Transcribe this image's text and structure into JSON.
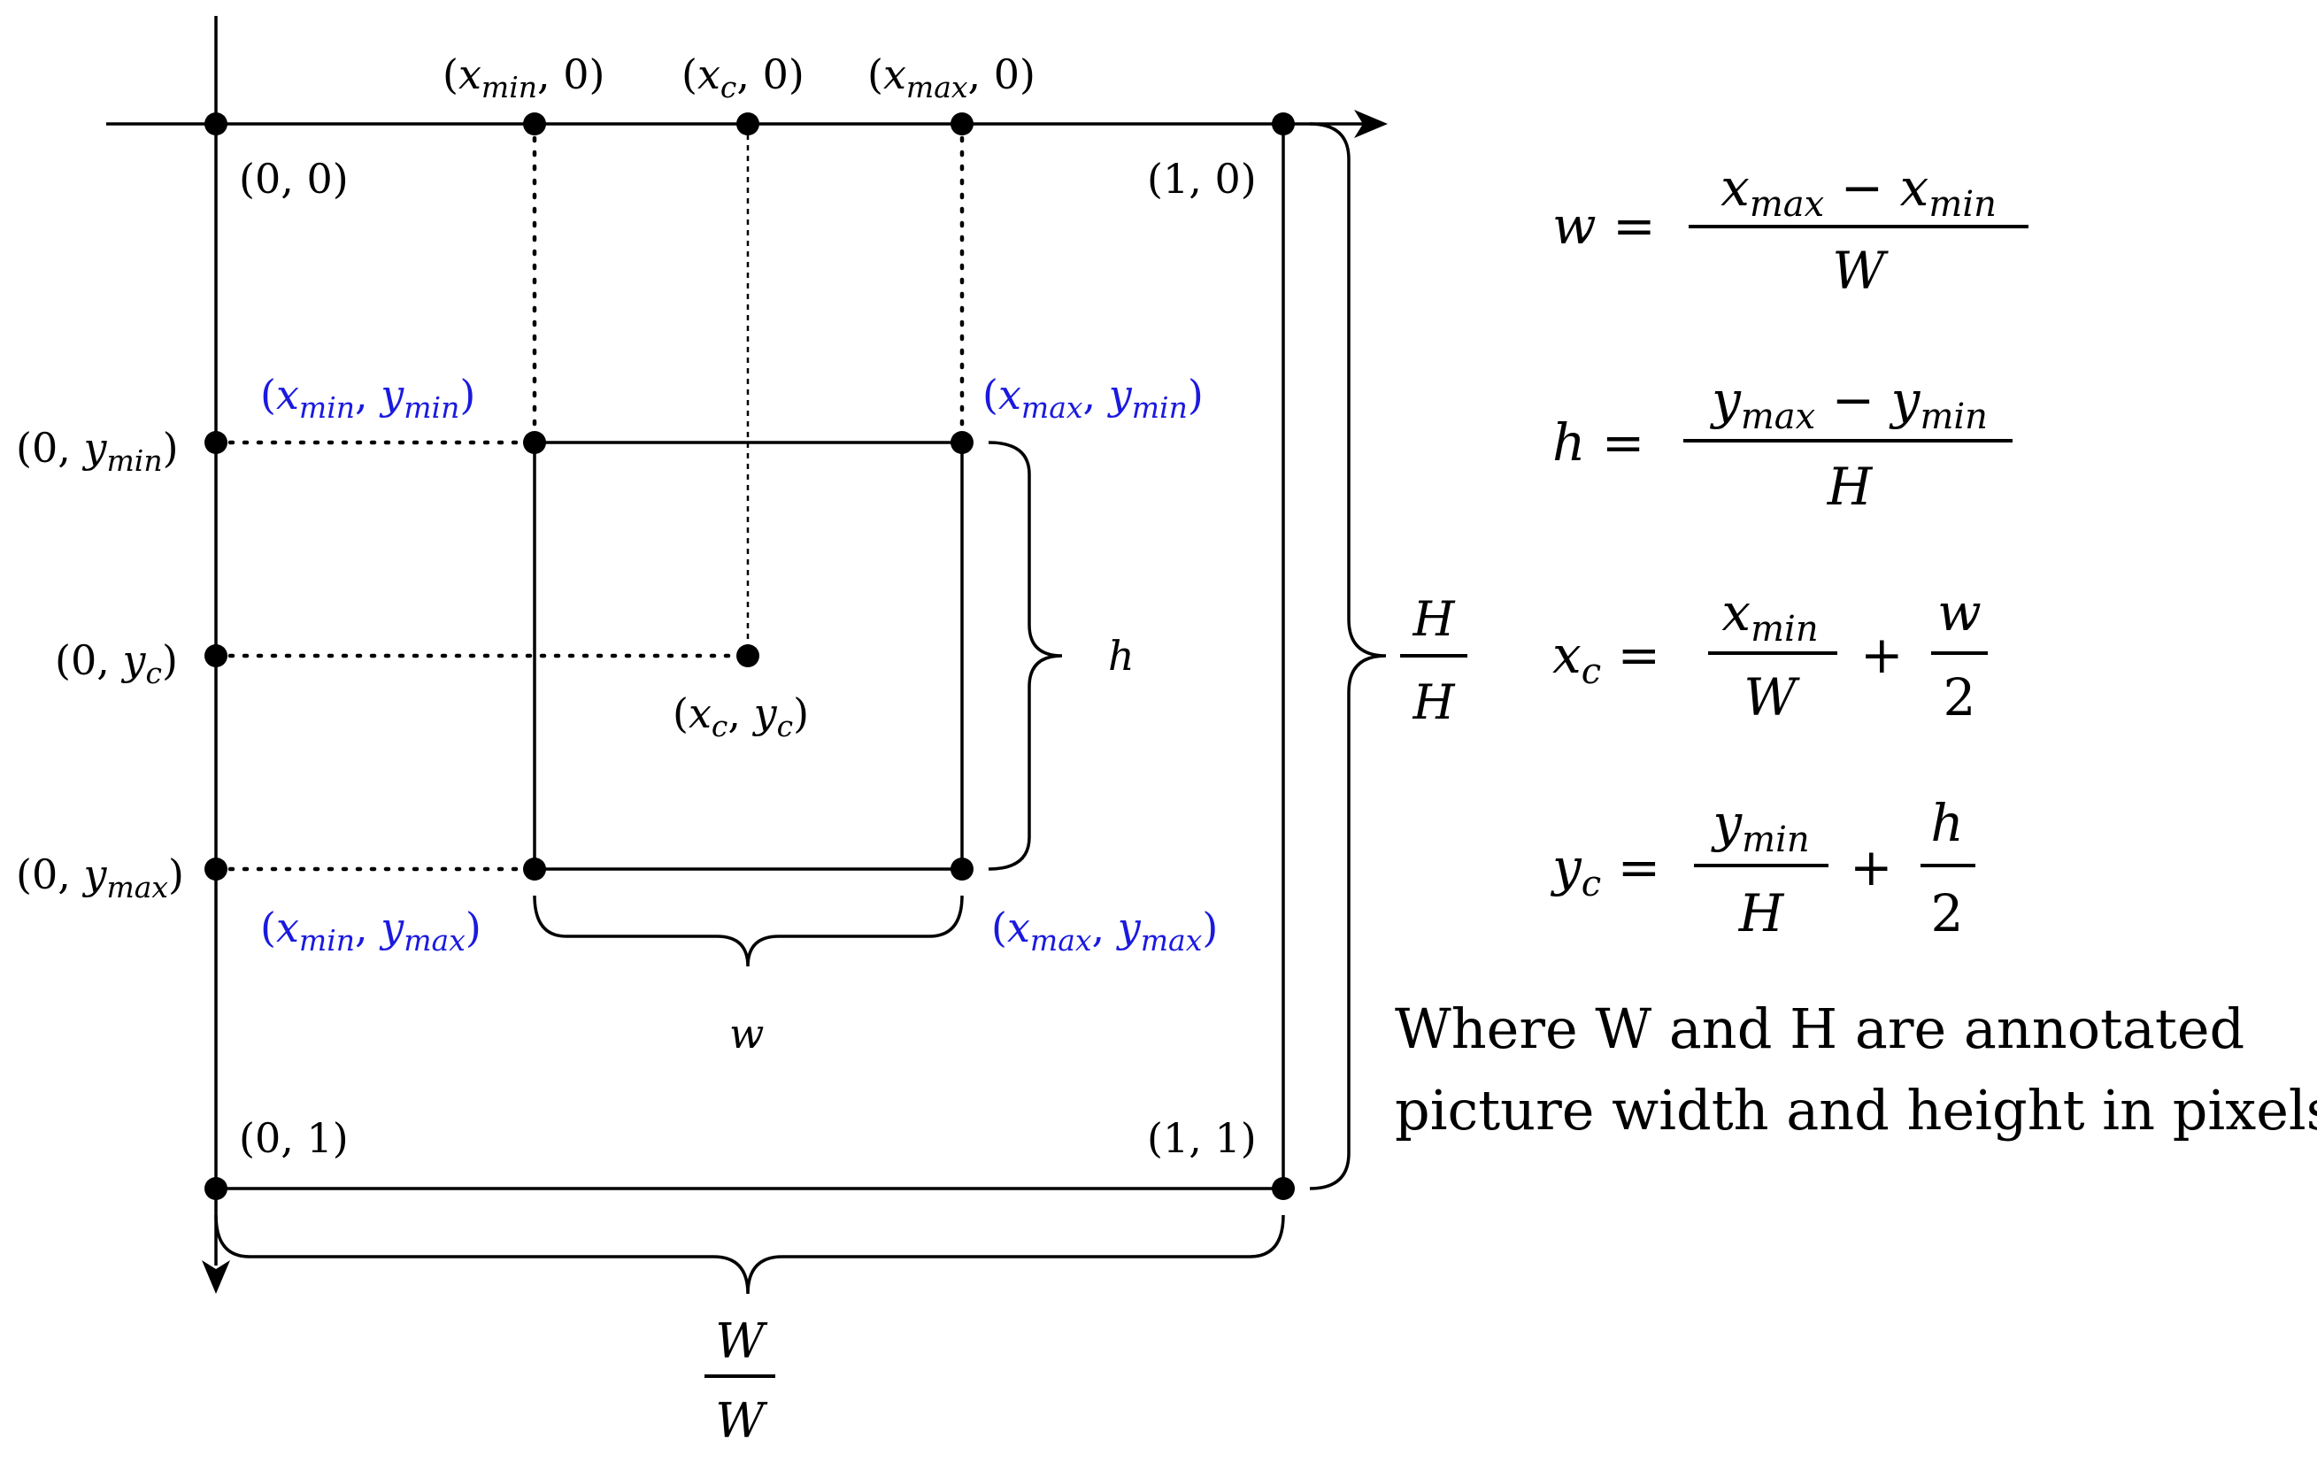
{
  "points": {
    "origin": "(0, 0)",
    "top_right": "(1, 0)",
    "bottom_left": "(0, 1)",
    "bottom_right": "(1, 1)",
    "xmin_axis": "(x_min, 0)",
    "xc_axis": "(x_c, 0)",
    "xmax_axis": "(x_max, 0)",
    "ymin_axis": "(0, y_min)",
    "yc_axis": "(0, y_c)",
    "ymax_axis": "(0, y_max)",
    "center": "(x_c, y_c)"
  },
  "box_corners": {
    "top_left": "(x_min, y_min)",
    "top_right": "(x_max, y_min)",
    "bottom_left": "(x_min, y_max)",
    "bottom_right": "(x_max, y_max)"
  },
  "braces": {
    "box_width": "w",
    "box_height": "h",
    "image_width": "W/W",
    "image_height": "H/H"
  },
  "formulas": [
    "w = (x_max − x_min) / W",
    "h = (y_max − y_min) / H",
    "x_c = x_min / W + w / 2",
    "y_c = y_min / H + h / 2"
  ],
  "note": {
    "line1": "Where W and H are annotated",
    "line2": "picture width and height in pixels"
  },
  "colors": {
    "corner_label": "#1a1adf",
    "line": "#000000"
  }
}
